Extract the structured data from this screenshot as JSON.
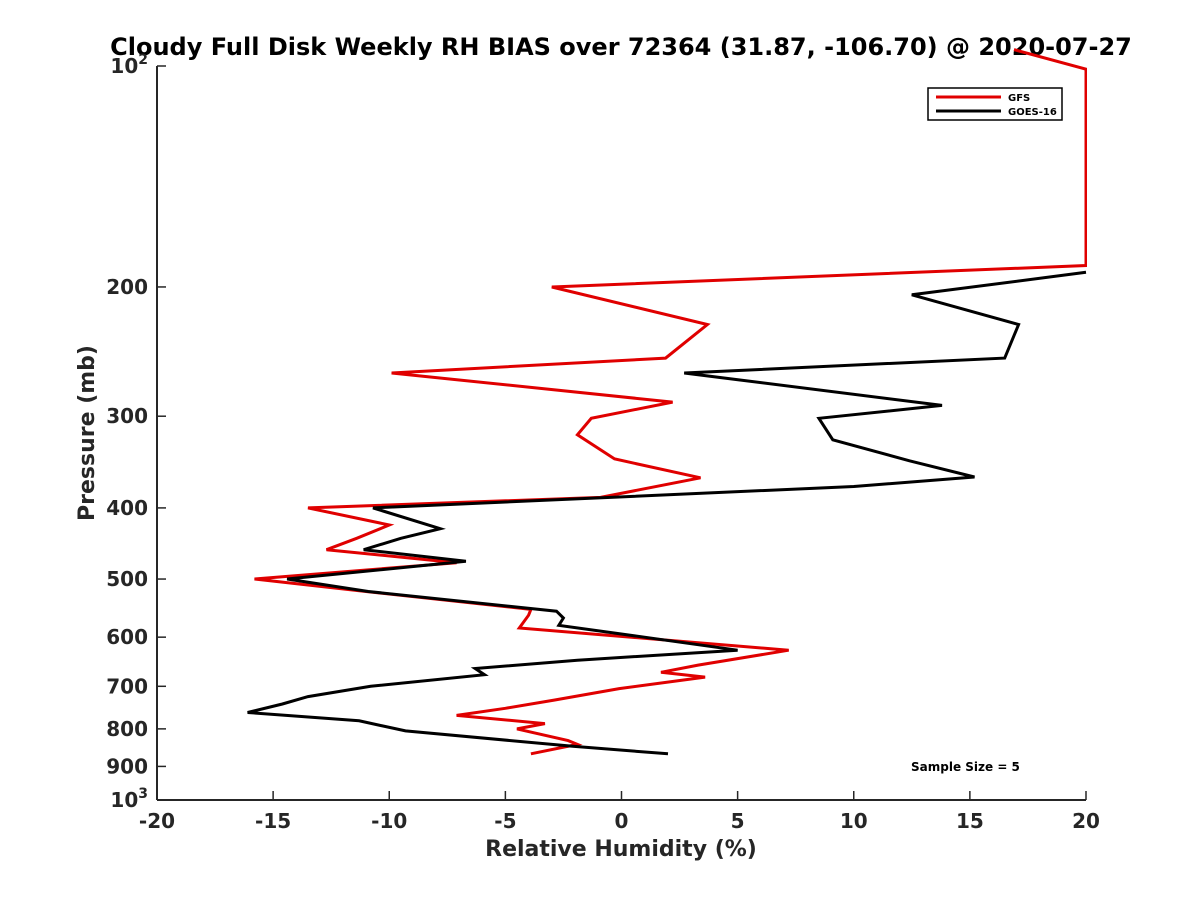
{
  "chart_data": {
    "type": "line",
    "title": "Cloudy Full Disk Weekly RH BIAS over 72364 (31.87, -106.70) @ 2020-07-27",
    "xlabel": "Relative Humidity (%)",
    "ylabel": "Pressure (mb)",
    "xlim": [
      -20,
      20
    ],
    "ylim": [
      100,
      1000
    ],
    "yscale": "log",
    "y_reversed": true,
    "x_ticks": [
      "-20",
      "-15",
      "-10",
      "-5",
      "0",
      "5",
      "10",
      "15",
      "20"
    ],
    "y_ticks": [
      {
        "value": 100,
        "base": "10",
        "exp": "2"
      },
      {
        "value": 200,
        "label": "200"
      },
      {
        "value": 300,
        "label": "300"
      },
      {
        "value": 400,
        "label": "400"
      },
      {
        "value": 500,
        "label": "500"
      },
      {
        "value": 600,
        "label": "600"
      },
      {
        "value": 700,
        "label": "700"
      },
      {
        "value": 800,
        "label": "800"
      },
      {
        "value": 900,
        "label": "900"
      },
      {
        "value": 1000,
        "base": "10",
        "exp": "3"
      }
    ],
    "legend_position": "top-right",
    "annotation": "Sample Size = 5",
    "series": [
      {
        "name": "GFS",
        "color": "#e00000",
        "points": [
          [
            16.9,
            95
          ],
          [
            20.0,
            101
          ],
          [
            20.0,
            187
          ],
          [
            -3.0,
            200
          ],
          [
            3.7,
            225
          ],
          [
            1.9,
            250
          ],
          [
            -9.9,
            262
          ],
          [
            2.2,
            287
          ],
          [
            -1.3,
            302
          ],
          [
            -1.9,
            318
          ],
          [
            -0.3,
            343
          ],
          [
            3.4,
            364
          ],
          [
            -0.9,
            387
          ],
          [
            -13.5,
            400
          ],
          [
            -10.0,
            422
          ],
          [
            -11.4,
            440
          ],
          [
            -12.7,
            456
          ],
          [
            -7.1,
            475
          ],
          [
            -15.8,
            500
          ],
          [
            -11.0,
            520
          ],
          [
            -3.9,
            550
          ],
          [
            -4.0,
            560
          ],
          [
            -4.4,
            583
          ],
          [
            7.2,
            625
          ],
          [
            3.3,
            655
          ],
          [
            1.7,
            670
          ],
          [
            3.6,
            680
          ],
          [
            -0.1,
            705
          ],
          [
            -2.9,
            731
          ],
          [
            -5.0,
            750
          ],
          [
            -7.1,
            767
          ],
          [
            -3.3,
            787
          ],
          [
            -4.5,
            800
          ],
          [
            -2.3,
            830
          ],
          [
            -1.9,
            840
          ],
          [
            -3.9,
            865
          ]
        ]
      },
      {
        "name": "GOES-16",
        "color": "#000000",
        "points": [
          [
            20.0,
            191
          ],
          [
            12.5,
            205
          ],
          [
            17.1,
            225
          ],
          [
            16.5,
            250
          ],
          [
            2.7,
            262
          ],
          [
            13.8,
            290
          ],
          [
            8.5,
            302
          ],
          [
            9.1,
            323
          ],
          [
            12.4,
            345
          ],
          [
            15.2,
            363
          ],
          [
            10.0,
            374
          ],
          [
            -10.7,
            400
          ],
          [
            -7.8,
            427
          ],
          [
            -9.5,
            440
          ],
          [
            -11.1,
            456
          ],
          [
            -6.7,
            473
          ],
          [
            -14.4,
            500
          ],
          [
            -10.9,
            520
          ],
          [
            -2.8,
            553
          ],
          [
            -2.5,
            565
          ],
          [
            -2.7,
            578
          ],
          [
            5.0,
            625
          ],
          [
            -1.9,
            645
          ],
          [
            -6.3,
            662
          ],
          [
            -5.9,
            675
          ],
          [
            -10.8,
            700
          ],
          [
            -13.5,
            723
          ],
          [
            -14.6,
            740
          ],
          [
            -16.1,
            760
          ],
          [
            -11.3,
            780
          ],
          [
            -9.3,
            805
          ],
          [
            -2.1,
            845
          ],
          [
            2.0,
            865
          ]
        ]
      }
    ]
  }
}
